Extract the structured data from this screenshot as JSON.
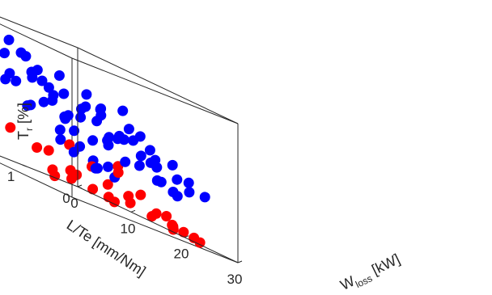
{
  "chart_data": {
    "type": "scatter",
    "dimensions": 3,
    "title": "",
    "xlabel": "W",
    "xlabel_sub": "loss",
    "xlabel_unit": " [kW]",
    "ylabel": "L/Te [mm/Nm]",
    "zlabel": "T",
    "zlabel_sub": "r",
    "zlabel_unit": " [%]",
    "xlim": [
      0,
      30
    ],
    "ylim": [
      0,
      3
    ],
    "zlim": [
      0,
      40
    ],
    "x_ticks": [
      "0",
      "10",
      "20",
      "30"
    ],
    "y_ticks": [
      "0",
      "1",
      "2",
      "3"
    ],
    "z_ticks": [
      "0",
      "10",
      "20",
      "30",
      "40"
    ],
    "grid": false,
    "box": true,
    "legend": false,
    "series": [
      {
        "color": "#0000ff",
        "points": [
          [
            2,
            2.8,
            33
          ],
          [
            3,
            2.5,
            30
          ],
          [
            4,
            2.2,
            25
          ],
          [
            5,
            2.6,
            22
          ],
          [
            2.5,
            2.9,
            18
          ],
          [
            6,
            2.3,
            28
          ],
          [
            7,
            2.0,
            31
          ],
          [
            8,
            2.4,
            35
          ],
          [
            9,
            2.1,
            26
          ],
          [
            10,
            1.8,
            29
          ],
          [
            4,
            1.9,
            20
          ],
          [
            5,
            1.6,
            24
          ],
          [
            6,
            1.4,
            27
          ],
          [
            7,
            1.7,
            33
          ],
          [
            8,
            1.5,
            30
          ],
          [
            11,
            2.0,
            33
          ],
          [
            12,
            1.6,
            25
          ],
          [
            13,
            1.9,
            28
          ],
          [
            14,
            1.3,
            22
          ],
          [
            15,
            1.7,
            27
          ],
          [
            3,
            1.2,
            18
          ],
          [
            4,
            1.0,
            21
          ],
          [
            5,
            0.8,
            15
          ],
          [
            6,
            1.1,
            26
          ],
          [
            7,
            0.9,
            19
          ],
          [
            9,
            1.2,
            31
          ],
          [
            10,
            0.9,
            24
          ],
          [
            11,
            1.3,
            20
          ],
          [
            12,
            1.0,
            29
          ],
          [
            13,
            0.7,
            17
          ],
          [
            16,
            1.2,
            23
          ],
          [
            17,
            1.5,
            26
          ],
          [
            18,
            0.9,
            21
          ],
          [
            19,
            1.3,
            19
          ],
          [
            20,
            0.8,
            24
          ],
          [
            21,
            1.1,
            25
          ],
          [
            22,
            1.4,
            21
          ],
          [
            23,
            0.9,
            18
          ],
          [
            24,
            1.2,
            16
          ],
          [
            25,
            0.7,
            20
          ],
          [
            26,
            1.0,
            14
          ],
          [
            27,
            0.6,
            17
          ],
          [
            28,
            0.9,
            12
          ],
          [
            29,
            0.5,
            15
          ],
          [
            27,
            1.3,
            22
          ],
          [
            8,
            0.5,
            16
          ],
          [
            10,
            0.4,
            19
          ],
          [
            12,
            0.3,
            14
          ],
          [
            14,
            0.6,
            21
          ],
          [
            16,
            0.4,
            18
          ],
          [
            18,
            0.3,
            13
          ],
          [
            20,
            0.5,
            17
          ],
          [
            22,
            0.4,
            12
          ],
          [
            24,
            0.3,
            14
          ],
          [
            15,
            2.3,
            20
          ],
          [
            17,
            2.1,
            24
          ],
          [
            19,
            1.9,
            18
          ],
          [
            21,
            2.2,
            22
          ],
          [
            23,
            1.8,
            26
          ],
          [
            25,
            1.6,
            30
          ],
          [
            26,
            2.1,
            28
          ],
          [
            28,
            1.7,
            23
          ],
          [
            29,
            1.4,
            20
          ],
          [
            30,
            1.1,
            17
          ],
          [
            5,
            2.0,
            35
          ],
          [
            9,
            2.6,
            38
          ],
          [
            13,
            2.5,
            36
          ],
          [
            6,
            0.3,
            10
          ],
          [
            9,
            0.2,
            8
          ],
          [
            12,
            0.8,
            9
          ],
          [
            15,
            0.9,
            11
          ],
          [
            18,
            1.7,
            14
          ],
          [
            20,
            2.0,
            12
          ],
          [
            22,
            1.8,
            10
          ],
          [
            24,
            1.9,
            28
          ],
          [
            3,
            0.6,
            12
          ],
          [
            2,
            1.5,
            23
          ],
          [
            1,
            2.0,
            27
          ],
          [
            4,
            2.9,
            26
          ],
          [
            7,
            2.7,
            19
          ]
        ]
      },
      {
        "color": "#ff0000",
        "points": [
          [
            1,
            2.8,
            32
          ],
          [
            2.5,
            2.3,
            18
          ],
          [
            1.5,
            2.8,
            8
          ],
          [
            3,
            2.3,
            6
          ],
          [
            5,
            1.7,
            10
          ],
          [
            7,
            1.2,
            8
          ],
          [
            6,
            0.6,
            4
          ],
          [
            8,
            0.5,
            2
          ],
          [
            10,
            0.3,
            1
          ],
          [
            13,
            1.0,
            9
          ],
          [
            15,
            1.6,
            13
          ],
          [
            16,
            1.0,
            6
          ],
          [
            18,
            0.6,
            7
          ],
          [
            19,
            1.1,
            11
          ],
          [
            21,
            1.3,
            13
          ],
          [
            23,
            0.8,
            4
          ],
          [
            25,
            0.5,
            2
          ],
          [
            27,
            0.9,
            3
          ],
          [
            28,
            1.1,
            5
          ],
          [
            26,
            0.3,
            1
          ],
          [
            12,
            0.6,
            2
          ],
          [
            14,
            0.4,
            3
          ],
          [
            17,
            0.3,
            2
          ],
          [
            20,
            0.2,
            1
          ],
          [
            22,
            0.4,
            2
          ],
          [
            9,
            1.0,
            5
          ],
          [
            11,
            1.8,
            8
          ],
          [
            4,
            0.8,
            1
          ],
          [
            3,
            0.4,
            2
          ],
          [
            24,
            1.4,
            6
          ],
          [
            29,
            0.7,
            2
          ],
          [
            16,
            2.0,
            4
          ],
          [
            5,
            2.5,
            2
          ]
        ]
      }
    ]
  }
}
